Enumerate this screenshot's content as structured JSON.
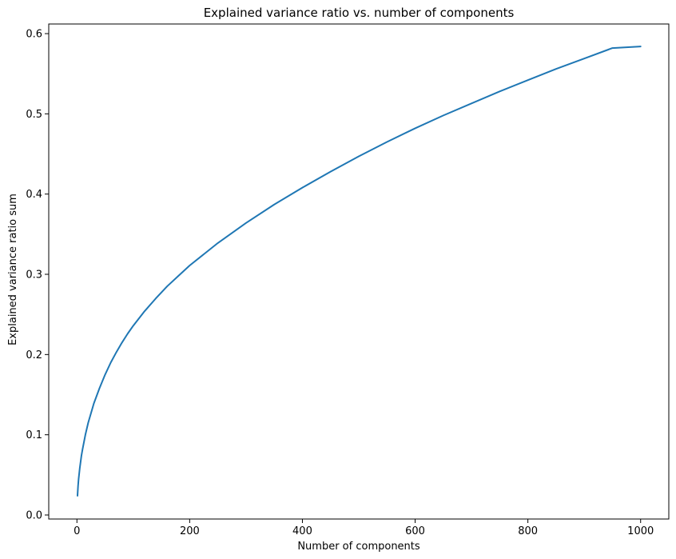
{
  "chart_data": {
    "type": "line",
    "title": "Explained variance ratio vs. number of components",
    "xlabel": "Number of components",
    "ylabel": "Explained variance ratio sum",
    "xlim": [
      -50,
      1050
    ],
    "ylim": [
      -0.005,
      0.612
    ],
    "xticks": [
      0,
      200,
      400,
      600,
      800,
      1000
    ],
    "xtick_labels": [
      "0",
      "200",
      "400",
      "600",
      "800",
      "1000"
    ],
    "yticks": [
      0.0,
      0.1,
      0.2,
      0.3,
      0.4,
      0.5,
      0.6
    ],
    "ytick_labels": [
      "0.0",
      "0.1",
      "0.2",
      "0.3",
      "0.4",
      "0.5",
      "0.6"
    ],
    "grid": false,
    "legend": "none",
    "series": [
      {
        "color": "#1f77b4",
        "x": [
          1,
          2,
          3,
          5,
          8,
          10,
          15,
          20,
          30,
          40,
          50,
          60,
          70,
          80,
          90,
          100,
          120,
          140,
          160,
          180,
          200,
          250,
          300,
          350,
          400,
          450,
          500,
          550,
          600,
          650,
          700,
          750,
          800,
          850,
          900,
          950,
          1000
        ],
        "y": [
          0.024,
          0.036,
          0.045,
          0.058,
          0.074,
          0.082,
          0.1,
          0.115,
          0.139,
          0.158,
          0.175,
          0.19,
          0.203,
          0.215,
          0.226,
          0.236,
          0.254,
          0.27,
          0.285,
          0.298,
          0.311,
          0.339,
          0.364,
          0.387,
          0.408,
          0.428,
          0.447,
          0.465,
          0.482,
          0.498,
          0.513,
          0.528,
          0.542,
          0.556,
          0.569,
          0.582,
          0.584
        ]
      }
    ]
  }
}
